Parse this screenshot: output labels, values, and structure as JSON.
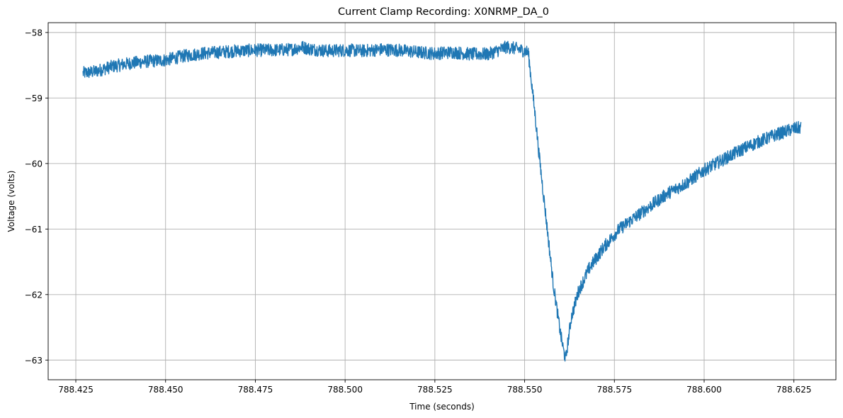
{
  "chart_data": {
    "type": "line",
    "title": "Current Clamp Recording: X0NRMP_DA_0",
    "xlabel": "Time (seconds)",
    "ylabel": "Voltage (volts)",
    "xlim": [
      788.4173,
      788.6367
    ],
    "ylim": [
      -63.3,
      -57.85
    ],
    "grid": true,
    "x_ticks": [
      788.425,
      788.45,
      788.475,
      788.5,
      788.525,
      788.55,
      788.575,
      788.6,
      788.625
    ],
    "x_tick_labels": [
      "788.425",
      "788.450",
      "788.475",
      "788.500",
      "788.525",
      "788.550",
      "788.575",
      "788.600",
      "788.625"
    ],
    "y_ticks": [
      -58,
      -59,
      -60,
      -61,
      -62,
      -63
    ],
    "y_tick_labels": [
      "−58",
      "−59",
      "−60",
      "−61",
      "−62",
      "−63"
    ],
    "series": [
      {
        "color": "#1f77b4",
        "noise_amplitude": 0.1,
        "x": [
          788.427,
          788.43,
          788.435,
          788.44,
          788.445,
          788.45,
          788.455,
          788.46,
          788.465,
          788.47,
          788.475,
          788.48,
          788.485,
          788.488,
          788.49,
          788.495,
          788.5,
          788.505,
          788.51,
          788.515,
          788.52,
          788.525,
          788.53,
          788.535,
          788.54,
          788.545,
          788.548,
          788.551,
          788.5515,
          788.552,
          788.553,
          788.554,
          788.556,
          788.558,
          788.56,
          788.561,
          788.5615,
          788.562,
          788.563,
          788.565,
          788.568,
          788.572,
          788.576,
          788.58,
          788.585,
          788.59,
          788.595,
          788.6,
          788.605,
          788.61,
          788.615,
          788.62,
          788.625,
          788.627
        ],
        "y": [
          -58.62,
          -58.6,
          -58.52,
          -58.47,
          -58.44,
          -58.42,
          -58.36,
          -58.32,
          -58.3,
          -58.28,
          -58.27,
          -58.27,
          -58.26,
          -58.22,
          -58.25,
          -58.28,
          -58.27,
          -58.28,
          -58.26,
          -58.27,
          -58.3,
          -58.32,
          -58.3,
          -58.33,
          -58.33,
          -58.22,
          -58.25,
          -58.3,
          -58.55,
          -58.8,
          -59.3,
          -59.85,
          -60.85,
          -61.85,
          -62.6,
          -62.9,
          -62.98,
          -62.75,
          -62.35,
          -61.95,
          -61.6,
          -61.28,
          -61.02,
          -60.85,
          -60.65,
          -60.45,
          -60.3,
          -60.1,
          -59.95,
          -59.8,
          -59.67,
          -59.56,
          -59.47,
          -59.45
        ]
      }
    ]
  }
}
